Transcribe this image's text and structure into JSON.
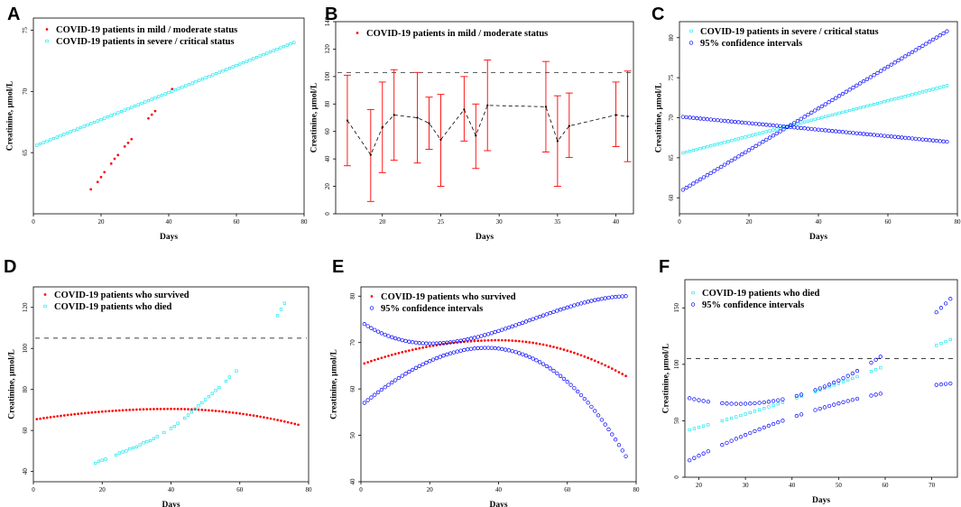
{
  "colors": {
    "mild": "#ff0000",
    "severe": "#00e5ee",
    "ci": "#0000ff",
    "errorbar": "#ff0000",
    "dashed": "#000000"
  },
  "chart_data": [
    {
      "id": "A",
      "letter": "A",
      "type": "scatter",
      "xlabel": "Days",
      "ylabel": "Creatinine, µmol/L",
      "xlim": [
        0,
        80
      ],
      "ylim": [
        60,
        76
      ],
      "xticks": [
        0,
        20,
        40,
        60,
        80
      ],
      "yticks": [
        65,
        70,
        75
      ],
      "legend": [
        {
          "label": "COVID-19 patients in mild / moderate status",
          "marker": "filled",
          "color_key": "mild"
        },
        {
          "label": "COVID-19 patients in severe / critical status",
          "marker": "square",
          "color_key": "severe"
        }
      ],
      "series": [
        {
          "name": "COVID-19 patients in mild / moderate status",
          "marker": "filled",
          "color_key": "mild",
          "x": [
            17,
            19,
            20,
            21,
            23,
            24,
            25,
            27,
            28,
            29,
            34,
            35,
            36,
            41
          ],
          "y": [
            62,
            62.6,
            63,
            63.4,
            64.1,
            64.5,
            64.8,
            65.5,
            65.8,
            66.1,
            67.8,
            68.1,
            68.4,
            70.2
          ]
        },
        {
          "name": "COVID-19 patients in severe / critical status",
          "marker": "square",
          "color_key": "severe",
          "line": {
            "x0": 1,
            "y0": 65.6,
            "x1": 77,
            "y1": 74.0,
            "n": 77
          }
        }
      ]
    },
    {
      "id": "B",
      "letter": "B",
      "type": "errorbar",
      "xlabel": "Days",
      "ylabel": "Creatinine, µmol/L",
      "xlim": [
        16,
        41.5
      ],
      "ylim": [
        0,
        140
      ],
      "xticks": [
        20,
        25,
        30,
        35,
        40
      ],
      "yticks": [
        0,
        20,
        40,
        60,
        80,
        100,
        120,
        140
      ],
      "hline": 103,
      "legend": [
        {
          "label": "COVID-19 patients in mild / moderate status",
          "marker": "filled",
          "color_key": "mild"
        }
      ],
      "points": [
        {
          "x": 17,
          "y": 68,
          "low": 35,
          "high": 101
        },
        {
          "x": 19,
          "y": 43,
          "low": 9,
          "high": 76
        },
        {
          "x": 20,
          "y": 63,
          "low": 30,
          "high": 96
        },
        {
          "x": 21,
          "y": 72,
          "low": 39,
          "high": 105
        },
        {
          "x": 23,
          "y": 70,
          "low": 37,
          "high": 103
        },
        {
          "x": 24,
          "y": 66,
          "low": 47,
          "high": 85
        },
        {
          "x": 25,
          "y": 54,
          "low": 20,
          "high": 87
        },
        {
          "x": 27,
          "y": 76,
          "low": 53,
          "high": 100
        },
        {
          "x": 28,
          "y": 57,
          "low": 33,
          "high": 80
        },
        {
          "x": 29,
          "y": 79,
          "low": 46,
          "high": 112
        },
        {
          "x": 34,
          "y": 78,
          "low": 45,
          "high": 111
        },
        {
          "x": 35,
          "y": 53,
          "low": 20,
          "high": 86
        },
        {
          "x": 36,
          "y": 64,
          "low": 41,
          "high": 88
        },
        {
          "x": 40,
          "y": 72,
          "low": 49,
          "high": 96
        },
        {
          "x": 41,
          "y": 71,
          "low": 38,
          "high": 104
        }
      ]
    },
    {
      "id": "C",
      "letter": "C",
      "type": "scatter",
      "xlabel": "Days",
      "ylabel": "Creatinine, µmol/L",
      "xlim": [
        0,
        80
      ],
      "ylim": [
        58,
        82
      ],
      "xticks": [
        0,
        20,
        40,
        60,
        80
      ],
      "yticks": [
        60,
        65,
        70,
        75,
        80
      ],
      "legend": [
        {
          "label": "COVID-19 patients in severe / critical status",
          "marker": "square",
          "color_key": "severe"
        },
        {
          "label": "95% confidence intervals",
          "marker": "circle",
          "color_key": "ci"
        }
      ],
      "series": [
        {
          "name": "COVID-19 patients in severe / critical status",
          "marker": "square",
          "color_key": "severe",
          "line": {
            "x0": 1,
            "y0": 65.6,
            "x1": 77,
            "y1": 74.0,
            "n": 77
          }
        },
        {
          "name": "upper 95% CI",
          "marker": "circle",
          "color_key": "ci",
          "line": {
            "x0": 1,
            "y0": 70.1,
            "x1": 77,
            "y1": 67.0,
            "n": 77
          }
        },
        {
          "name": "lower 95% CI",
          "marker": "circle",
          "color_key": "ci",
          "line": {
            "x0": 1,
            "y0": 61.0,
            "x1": 77,
            "y1": 80.8,
            "n": 77
          }
        }
      ]
    },
    {
      "id": "D",
      "letter": "D",
      "type": "scatter",
      "xlabel": "Days",
      "ylabel": "Creatinine, µmol/L",
      "xlim": [
        0,
        80
      ],
      "ylim": [
        35,
        130
      ],
      "xticks": [
        0,
        20,
        40,
        60,
        80
      ],
      "yticks": [
        40,
        60,
        80,
        100,
        120
      ],
      "hline": 105,
      "legend": [
        {
          "label": "COVID-19 patients who survived",
          "marker": "filled",
          "color_key": "mild"
        },
        {
          "label": "COVID-19 patients who died",
          "marker": "square",
          "color_key": "severe"
        }
      ],
      "series": [
        {
          "name": "COVID-19 patients who survived",
          "marker": "filled",
          "color_key": "mild",
          "quad": {
            "x0": 1,
            "x1": 77,
            "n": 77,
            "peak_x": 40,
            "peak_y": 70.5,
            "start_y": 65.5,
            "end_y": 62.8
          }
        },
        {
          "name": "COVID-19 patients who died",
          "marker": "square",
          "color_key": "severe",
          "x": [
            18,
            19,
            20,
            21,
            24,
            25,
            26,
            27,
            28,
            29,
            30,
            31,
            32,
            33,
            34,
            35,
            36,
            38,
            40,
            41,
            42,
            44,
            45,
            46,
            47,
            48,
            49,
            50,
            51,
            52,
            53,
            54,
            56,
            57,
            59,
            71,
            72,
            73
          ],
          "y": [
            44,
            45,
            45.5,
            46,
            48,
            49,
            49.5,
            50,
            51,
            51.5,
            52,
            53,
            54,
            54.5,
            55,
            56,
            57,
            59,
            61,
            62,
            63.5,
            66,
            67.5,
            69,
            70.5,
            72,
            73.5,
            75,
            76.5,
            78,
            79.5,
            81,
            84,
            86,
            89,
            116,
            119,
            122
          ]
        }
      ]
    },
    {
      "id": "E",
      "letter": "E",
      "type": "scatter",
      "xlabel": "Days",
      "ylabel": "Creatinine, µmol/L",
      "xlim": [
        0,
        80
      ],
      "ylim": [
        40,
        82
      ],
      "xticks": [
        0,
        20,
        40,
        60,
        80
      ],
      "yticks": [
        40,
        50,
        60,
        70,
        80
      ],
      "legend": [
        {
          "label": "COVID-19 patients who survived",
          "marker": "filled",
          "color_key": "mild"
        },
        {
          "label": "95% confidence intervals",
          "marker": "circle",
          "color_key": "ci"
        }
      ],
      "series": [
        {
          "name": "COVID-19 patients who survived",
          "marker": "filled",
          "color_key": "mild",
          "quad": {
            "x0": 1,
            "x1": 77,
            "n": 77,
            "peak_x": 40,
            "peak_y": 70.5,
            "start_y": 65.5,
            "end_y": 62.8
          }
        },
        {
          "name": "upper 95% CI",
          "marker": "circle",
          "color_key": "ci",
          "cubic": {
            "x0": 1,
            "x1": 77,
            "n": 77,
            "pts": [
              [
                1,
                74
              ],
              [
                20,
                69.8
              ],
              [
                40,
                72.5
              ],
              [
                77,
                80
              ]
            ]
          }
        },
        {
          "name": "lower 95% CI",
          "marker": "circle",
          "color_key": "ci",
          "cubic": {
            "x0": 1,
            "x1": 77,
            "n": 77,
            "pts": [
              [
                1,
                57
              ],
              [
                20,
                66
              ],
              [
                40,
                68.7
              ],
              [
                77,
                45.5
              ]
            ]
          }
        }
      ]
    },
    {
      "id": "F",
      "letter": "F",
      "type": "scatter",
      "xlabel": "Days",
      "ylabel": "Creatinine, µmol/L",
      "xlim": [
        17,
        75.5
      ],
      "ylim": [
        0,
        175
      ],
      "xticks": [
        20,
        30,
        40,
        50,
        60,
        70
      ],
      "yticks": [
        0,
        50,
        100,
        150
      ],
      "hline": 105,
      "legend": [
        {
          "label": "COVID-19 patients who died",
          "marker": "square",
          "color_key": "severe"
        },
        {
          "label": "95% confidence intervals",
          "marker": "circle",
          "color_key": "ci"
        }
      ],
      "xs": [
        18,
        19,
        20,
        21,
        22,
        25,
        26,
        27,
        28,
        29,
        30,
        31,
        32,
        33,
        34,
        35,
        36,
        37,
        38,
        41,
        42,
        45,
        46,
        47,
        48,
        49,
        50,
        51,
        52,
        53,
        54,
        57,
        58,
        59,
        71,
        72,
        73,
        74
      ],
      "series": [
        {
          "name": "COVID-19 patients who died",
          "marker": "square",
          "color_key": "severe",
          "fx": {
            "a": 18,
            "b": 74,
            "ya": 42,
            "yb": 122,
            "curv": 0.006
          }
        },
        {
          "name": "upper 95% CI",
          "marker": "circle",
          "color_key": "ci",
          "fx": {
            "a": 18,
            "b": 74,
            "ya": 70,
            "yb": 158,
            "curv": 0.045
          }
        },
        {
          "name": "lower 95% CI",
          "marker": "circle",
          "color_key": "ci",
          "fx": {
            "a": 18,
            "b": 74,
            "ya": 15,
            "yb": 83,
            "curv": -0.015
          }
        }
      ]
    }
  ]
}
